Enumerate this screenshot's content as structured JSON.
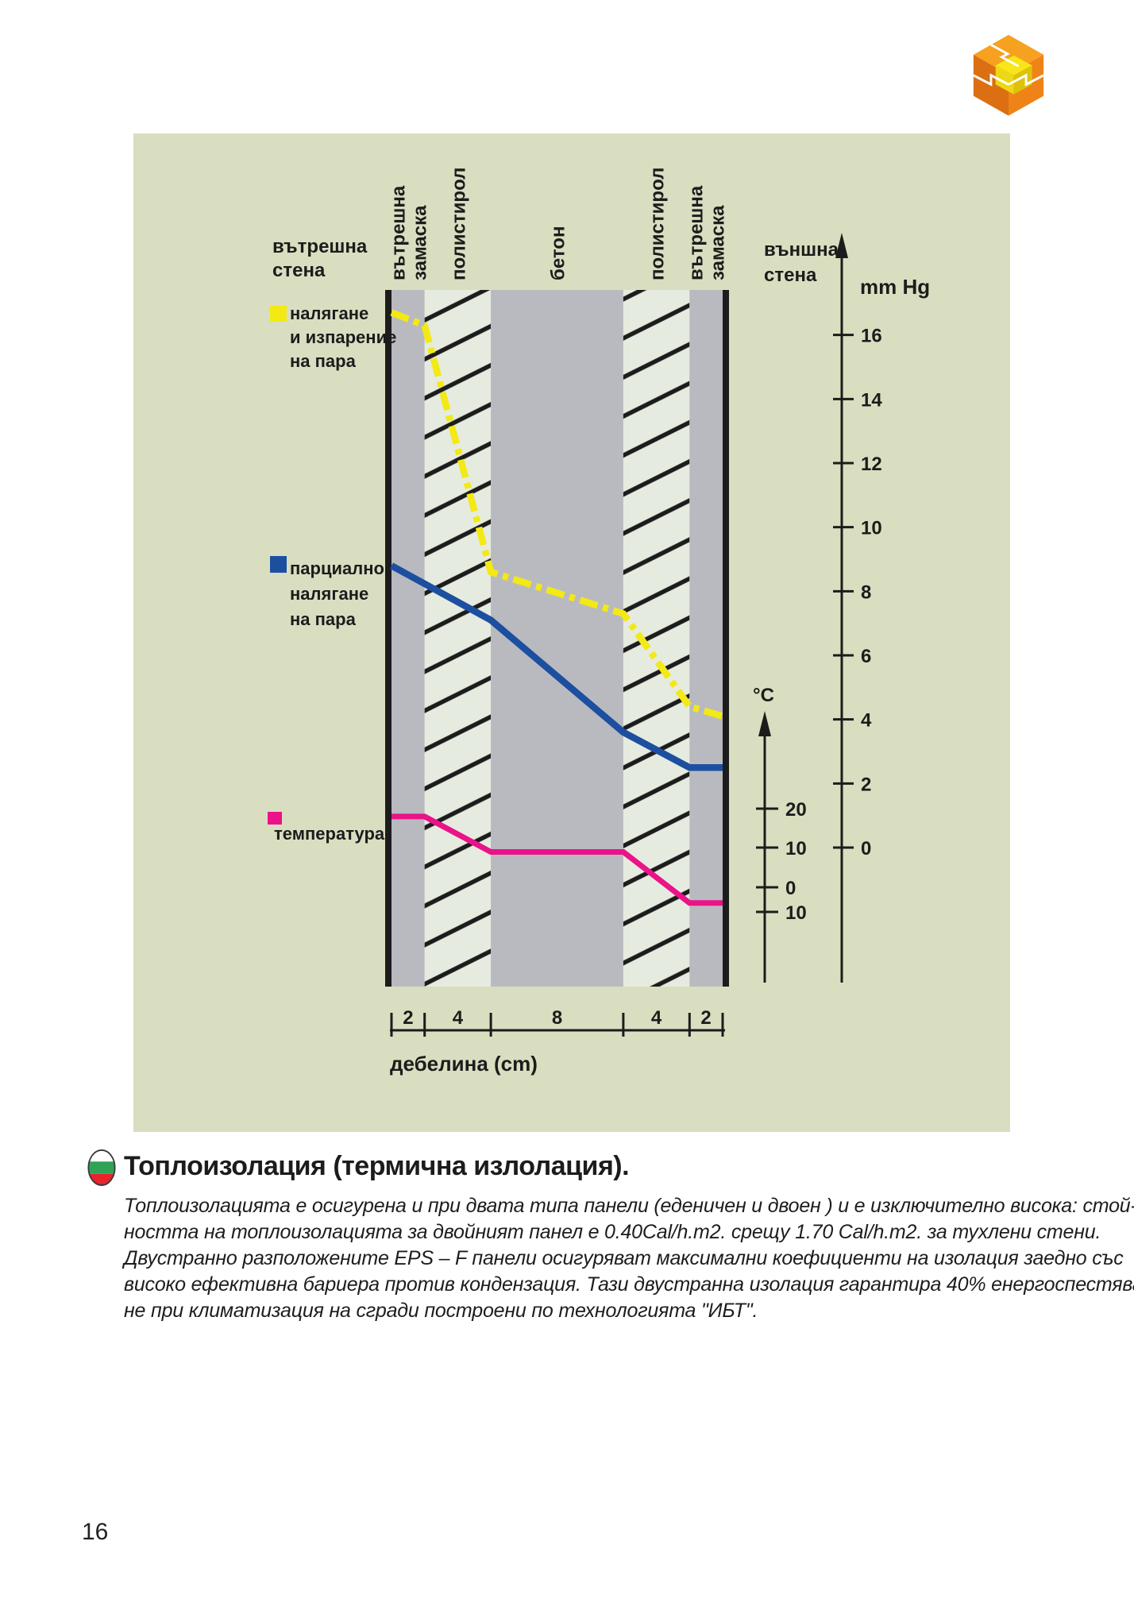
{
  "page_number": "16",
  "panel": {
    "bg": "#dadec0"
  },
  "logo": {
    "icon": "puzzle-cube-icon",
    "colors": {
      "orange_top": "#f6a11f",
      "orange_left": "#db6f12",
      "orange_right": "#ef8318",
      "yellow_top": "#f8e51a",
      "yellow_left": "#eed714",
      "yellow_right": "#dcc20c",
      "seam": "#ffffff"
    }
  },
  "diagram": {
    "left_wall_label": [
      "вътрешна",
      "стена"
    ],
    "right_wall_label": [
      "външна",
      "стена"
    ],
    "pressure_axis_label": "mm Hg",
    "temp_axis_label": "°C",
    "thickness_axis_label": "дебелина (cm)",
    "colors": {
      "plaster": "#b9bac0",
      "concrete": "#b9bac0",
      "polystyrene": "#e6ebe0",
      "hatch": "#1c1c1c",
      "wall_edge": "#1c1c1c"
    },
    "layers": [
      {
        "label": "вътрешна замаска",
        "thickness_cm": 2,
        "type": "plaster"
      },
      {
        "label": "полистирол",
        "thickness_cm": 4,
        "type": "polystyrene"
      },
      {
        "label": "бетон",
        "thickness_cm": 8,
        "type": "concrete"
      },
      {
        "label": "полистирол",
        "thickness_cm": 4,
        "type": "polystyrene"
      },
      {
        "label": "вътрешна замаска",
        "thickness_cm": 2,
        "type": "plaster"
      }
    ],
    "legend": [
      {
        "color": "#f3e914",
        "lines": [
          "налягане",
          "и изпарение",
          "на пара"
        ]
      },
      {
        "color": "#1d4fa0",
        "lines": [
          "парциално",
          "налягане",
          "на пара"
        ]
      },
      {
        "color": "#ea1388",
        "lines": [
          "температура"
        ]
      }
    ]
  },
  "chart_data": {
    "type": "line",
    "title": "",
    "xlabel": "дебелина (cm)",
    "x_boundaries_cm": [
      0,
      2,
      6,
      14,
      18,
      20
    ],
    "thickness_labels": [
      "2",
      "4",
      "8",
      "4",
      "2"
    ],
    "pressure_axis": {
      "unit": "mm Hg",
      "ticks": [
        16,
        14,
        12,
        10,
        8,
        6,
        4,
        2,
        0
      ]
    },
    "temperature_axis": {
      "unit": "°C",
      "ticks": [
        "20",
        "10",
        "0",
        "10"
      ]
    },
    "series": [
      {
        "name": "налягане и изпарение на пара",
        "color": "#f3e914",
        "style": "dashdot",
        "unit": "mm Hg",
        "x_cm": [
          0,
          2,
          6,
          14,
          18,
          20
        ],
        "values": [
          16.7,
          16.3,
          8.6,
          7.3,
          4.4,
          4.1
        ]
      },
      {
        "name": "парциално налягане на пара",
        "color": "#1d4fa0",
        "style": "solid",
        "unit": "mm Hg",
        "x_cm": [
          0,
          6,
          14,
          18,
          20
        ],
        "values": [
          8.8,
          7.1,
          3.6,
          2.5,
          2.5
        ]
      },
      {
        "name": "температура",
        "color": "#ea1388",
        "style": "solid",
        "unit": "°C",
        "x_cm": [
          0,
          2,
          6,
          14,
          18,
          20
        ],
        "values": [
          18,
          18,
          9,
          9,
          -4,
          -4
        ]
      }
    ]
  },
  "section": {
    "heading": "Топлоизолация (термична излолация).",
    "flag_icon": "bulgaria-flag-icon",
    "flag_colors": {
      "white": "#ffffff",
      "green": "#2fa356",
      "red": "#e8232e"
    },
    "paragraph_lines": [
      "Топлоизолацията е осигурена и при двата типа панели (еденичен и двоен ) и е изключително висока: стой-",
      "ността на топлоизолацията за двойният панел е 0.40Cal/h.m2. срещу 1.70 Cal/h.m2. за тухлени стени.",
      "Двустранно разположените EPS – F панели осигуряват максимални коефициенти на изолация заедно със",
      "високо ефективна бариера против кондензация. Тази двустранна изолация гарантира 40% енергоспестява-",
      "не при климатизация на сгради построени по технологията \"ИБТ\"."
    ]
  }
}
